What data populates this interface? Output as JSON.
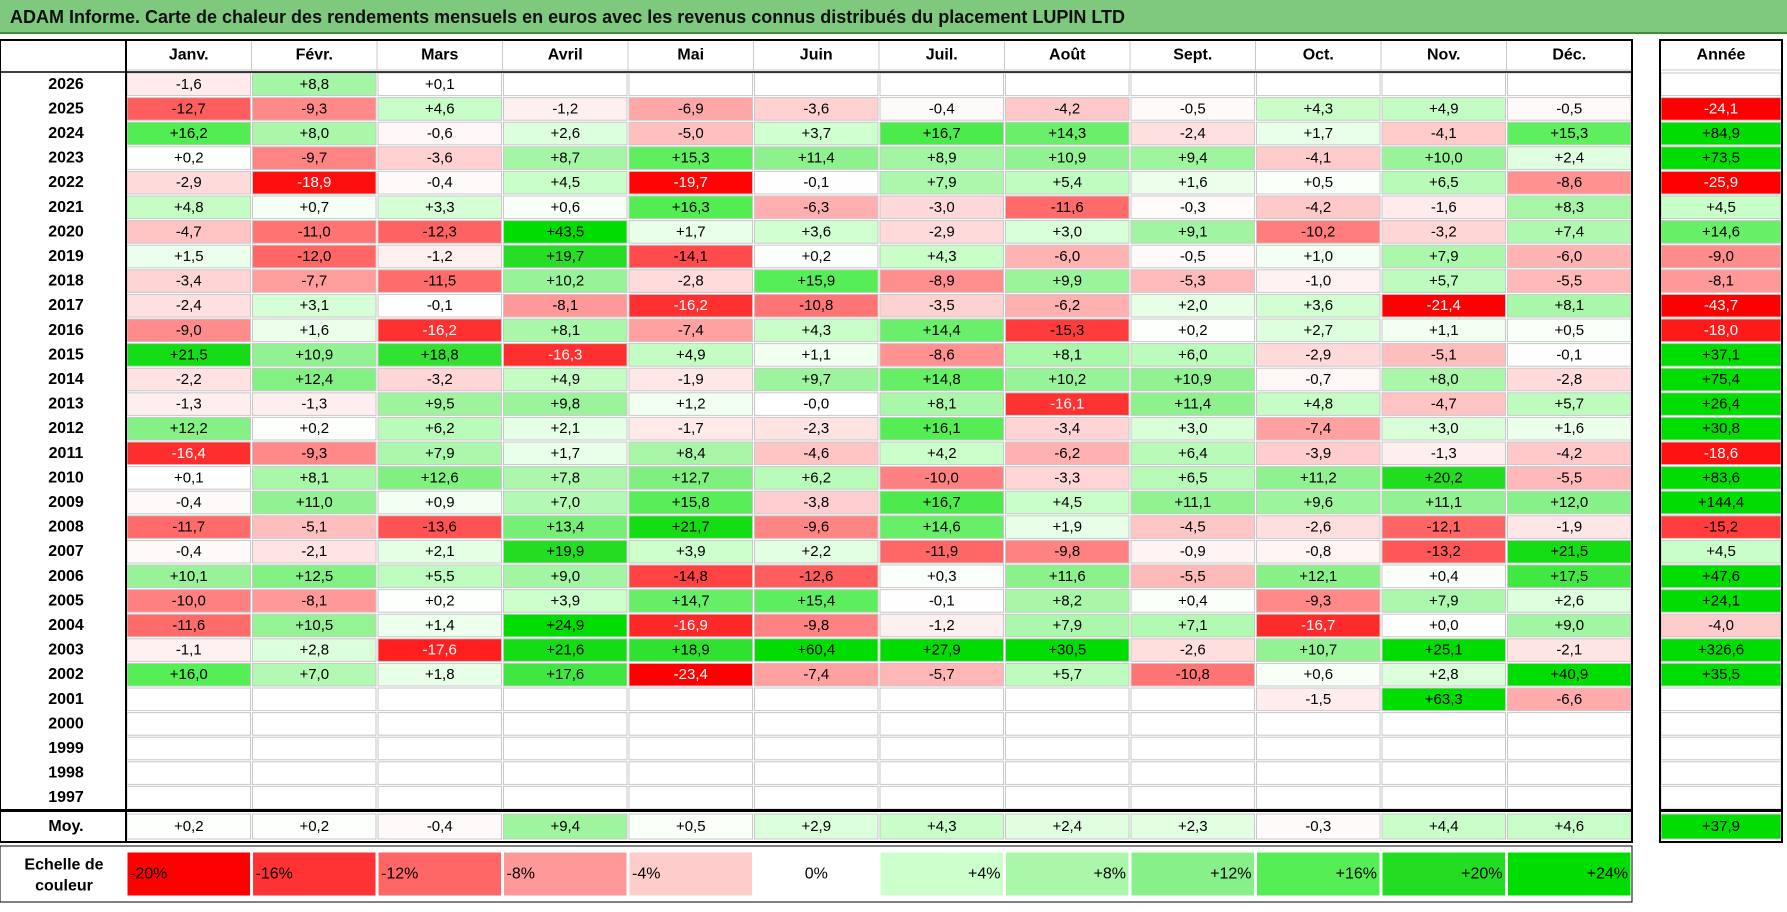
{
  "title": "ADAM Informe. Carte de chaleur des rendements mensuels en euros avec les revenus connus distribués du placement LUPIN LTD",
  "chart_data": {
    "type": "heatmap",
    "title": "ADAM Informe. Carte de chaleur des rendements mensuels en euros avec les revenus connus distribués du placement LUPIN LTD",
    "months": [
      "Janv.",
      "Févr.",
      "Mars",
      "Avril",
      "Mai",
      "Juin",
      "Juil.",
      "Août",
      "Sept.",
      "Oct.",
      "Nov.",
      "Déc."
    ],
    "year_header": "Année",
    "rows": [
      {
        "year": "2026",
        "values": [
          "-1,6",
          "+8,8",
          "+0,1",
          "",
          "",
          "",
          "",
          "",
          "",
          "",
          "",
          ""
        ],
        "annual": ""
      },
      {
        "year": "2025",
        "values": [
          "-12,7",
          "-9,3",
          "+4,6",
          "-1,2",
          "-6,9",
          "-3,6",
          "-0,4",
          "-4,2",
          "-0,5",
          "+4,3",
          "+4,9",
          "-0,5"
        ],
        "annual": "-24,1"
      },
      {
        "year": "2024",
        "values": [
          "+16,2",
          "+8,0",
          "-0,6",
          "+2,6",
          "-5,0",
          "+3,7",
          "+16,7",
          "+14,3",
          "-2,4",
          "+1,7",
          "-4,1",
          "+15,3"
        ],
        "annual": "+84,9"
      },
      {
        "year": "2023",
        "values": [
          "+0,2",
          "-9,7",
          "-3,6",
          "+8,7",
          "+15,3",
          "+11,4",
          "+8,9",
          "+10,9",
          "+9,4",
          "-4,1",
          "+10,0",
          "+2,4"
        ],
        "annual": "+73,5"
      },
      {
        "year": "2022",
        "values": [
          "-2,9",
          "-18,9",
          "-0,4",
          "+4,5",
          "-19,7",
          "-0,1",
          "+7,9",
          "+5,4",
          "+1,6",
          "+0,5",
          "+6,5",
          "-8,6"
        ],
        "annual": "-25,9"
      },
      {
        "year": "2021",
        "values": [
          "+4,8",
          "+0,7",
          "+3,3",
          "+0,6",
          "+16,3",
          "-6,3",
          "-3,0",
          "-11,6",
          "-0,3",
          "-4,2",
          "-1,6",
          "+8,3"
        ],
        "annual": "+4,5"
      },
      {
        "year": "2020",
        "values": [
          "-4,7",
          "-11,0",
          "-12,3",
          "+43,5",
          "+1,7",
          "+3,6",
          "-2,9",
          "+3,0",
          "+9,1",
          "-10,2",
          "-3,2",
          "+7,4"
        ],
        "annual": "+14,6"
      },
      {
        "year": "2019",
        "values": [
          "+1,5",
          "-12,0",
          "-1,2",
          "+19,7",
          "-14,1",
          "+0,2",
          "+4,3",
          "-6,0",
          "-0,5",
          "+1,0",
          "+7,9",
          "-6,0"
        ],
        "annual": "-9,0"
      },
      {
        "year": "2018",
        "values": [
          "-3,4",
          "-7,7",
          "-11,5",
          "+10,2",
          "-2,8",
          "+15,9",
          "-8,9",
          "+9,9",
          "-5,3",
          "-1,0",
          "+5,7",
          "-5,5"
        ],
        "annual": "-8,1"
      },
      {
        "year": "2017",
        "values": [
          "-2,4",
          "+3,1",
          "-0,1",
          "-8,1",
          "-16,2",
          "-10,8",
          "-3,5",
          "-6,2",
          "+2,0",
          "+3,6",
          "-21,4",
          "+8,1"
        ],
        "annual": "-43,7"
      },
      {
        "year": "2016",
        "values": [
          "-9,0",
          "+1,6",
          "-16,2",
          "+8,1",
          "-7,4",
          "+4,3",
          "+14,4",
          "-15,3",
          "+0,2",
          "+2,7",
          "+1,1",
          "+0,5"
        ],
        "annual": "-18,0"
      },
      {
        "year": "2015",
        "values": [
          "+21,5",
          "+10,9",
          "+18,8",
          "-16,3",
          "+4,9",
          "+1,1",
          "-8,6",
          "+8,1",
          "+6,0",
          "-2,9",
          "-5,1",
          "-0,1"
        ],
        "annual": "+37,1"
      },
      {
        "year": "2014",
        "values": [
          "-2,2",
          "+12,4",
          "-3,2",
          "+4,9",
          "-1,9",
          "+9,7",
          "+14,8",
          "+10,2",
          "+10,9",
          "-0,7",
          "+8,0",
          "-2,8"
        ],
        "annual": "+75,4"
      },
      {
        "year": "2013",
        "values": [
          "-1,3",
          "-1,3",
          "+9,5",
          "+9,8",
          "+1,2",
          "-0,0",
          "+8,1",
          "-16,1",
          "+11,4",
          "+4,8",
          "-4,7",
          "+5,7"
        ],
        "annual": "+26,4"
      },
      {
        "year": "2012",
        "values": [
          "+12,2",
          "+0,2",
          "+6,2",
          "+2,1",
          "-1,7",
          "-2,3",
          "+16,1",
          "-3,4",
          "+3,0",
          "-7,4",
          "+3,0",
          "+1,6"
        ],
        "annual": "+30,8"
      },
      {
        "year": "2011",
        "values": [
          "-16,4",
          "-9,3",
          "+7,9",
          "+1,7",
          "+8,4",
          "-4,6",
          "+4,2",
          "-6,2",
          "+6,4",
          "-3,9",
          "-1,3",
          "-4,2"
        ],
        "annual": "-18,6"
      },
      {
        "year": "2010",
        "values": [
          "+0,1",
          "+8,1",
          "+12,6",
          "+7,8",
          "+12,7",
          "+6,2",
          "-10,0",
          "-3,3",
          "+6,5",
          "+11,2",
          "+20,2",
          "-5,5"
        ],
        "annual": "+83,6"
      },
      {
        "year": "2009",
        "values": [
          "-0,4",
          "+11,0",
          "+0,9",
          "+7,0",
          "+15,8",
          "-3,8",
          "+16,7",
          "+4,5",
          "+11,1",
          "+9,6",
          "+11,1",
          "+12,0"
        ],
        "annual": "+144,4"
      },
      {
        "year": "2008",
        "values": [
          "-11,7",
          "-5,1",
          "-13,6",
          "+13,4",
          "+21,7",
          "-9,6",
          "+14,6",
          "+1,9",
          "-4,5",
          "-2,6",
          "-12,1",
          "-1,9"
        ],
        "annual": "-15,2"
      },
      {
        "year": "2007",
        "values": [
          "-0,4",
          "-2,1",
          "+2,1",
          "+19,9",
          "+3,9",
          "+2,2",
          "-11,9",
          "-9,8",
          "-0,9",
          "-0,8",
          "-13,2",
          "+21,5"
        ],
        "annual": "+4,5"
      },
      {
        "year": "2006",
        "values": [
          "+10,1",
          "+12,5",
          "+5,5",
          "+9,0",
          "-14,8",
          "-12,6",
          "+0,3",
          "+11,6",
          "-5,5",
          "+12,1",
          "+0,4",
          "+17,5"
        ],
        "annual": "+47,6"
      },
      {
        "year": "2005",
        "values": [
          "-10,0",
          "-8,1",
          "+0,2",
          "+3,9",
          "+14,7",
          "+15,4",
          "-0,1",
          "+8,2",
          "+0,4",
          "-9,3",
          "+7,9",
          "+2,6"
        ],
        "annual": "+24,1"
      },
      {
        "year": "2004",
        "values": [
          "-11,6",
          "+10,5",
          "+1,4",
          "+24,9",
          "-16,9",
          "-9,8",
          "-1,2",
          "+7,9",
          "+7,1",
          "-16,7",
          "+0,0",
          "+9,0"
        ],
        "annual": "-4,0"
      },
      {
        "year": "2003",
        "values": [
          "-1,1",
          "+2,8",
          "-17,6",
          "+21,6",
          "+18,9",
          "+60,4",
          "+27,9",
          "+30,5",
          "-2,6",
          "+10,7",
          "+25,1",
          "-2,1"
        ],
        "annual": "+326,6"
      },
      {
        "year": "2002",
        "values": [
          "+16,0",
          "+7,0",
          "+1,8",
          "+17,6",
          "-23,4",
          "-7,4",
          "-5,7",
          "+5,7",
          "-10,8",
          "+0,6",
          "+2,8",
          "+40,9"
        ],
        "annual": "+35,5"
      },
      {
        "year": "2001",
        "values": [
          "",
          "",
          "",
          "",
          "",
          "",
          "",
          "",
          "",
          "-1,5",
          "+63,3",
          "-6,6"
        ],
        "annual": ""
      },
      {
        "year": "2000",
        "values": [
          "",
          "",
          "",
          "",
          "",
          "",
          "",
          "",
          "",
          "",
          "",
          ""
        ],
        "annual": ""
      },
      {
        "year": "1999",
        "values": [
          "",
          "",
          "",
          "",
          "",
          "",
          "",
          "",
          "",
          "",
          "",
          ""
        ],
        "annual": ""
      },
      {
        "year": "1998",
        "values": [
          "",
          "",
          "",
          "",
          "",
          "",
          "",
          "",
          "",
          "",
          "",
          ""
        ],
        "annual": ""
      },
      {
        "year": "1997",
        "values": [
          "",
          "",
          "",
          "",
          "",
          "",
          "",
          "",
          "",
          "",
          "",
          ""
        ],
        "annual": ""
      }
    ],
    "average": {
      "label": "Moy.",
      "values": [
        "+0,2",
        "+0,2",
        "-0,4",
        "+9,4",
        "+0,5",
        "+2,9",
        "+4,3",
        "+2,4",
        "+2,3",
        "-0,3",
        "+4,4",
        "+4,6"
      ],
      "annual": "+37,9"
    },
    "scale": {
      "label_line1": "Echelle de",
      "label_line2": "couleur",
      "steps": [
        {
          "label": "-20%",
          "value": -20,
          "color": "#ff0000"
        },
        {
          "label": "-16%",
          "value": -16,
          "color": "#ff3333"
        },
        {
          "label": "-12%",
          "value": -12,
          "color": "#ff6666"
        },
        {
          "label": "-8%",
          "value": -8,
          "color": "#ff9999"
        },
        {
          "label": "-4%",
          "value": -4,
          "color": "#ffcccc"
        },
        {
          "label": "0%",
          "value": 0,
          "color": "#ffffff"
        },
        {
          "label": "+4%",
          "value": 4,
          "color": "#ccffcc"
        },
        {
          "label": "+8%",
          "value": 8,
          "color": "#aaf7aa"
        },
        {
          "label": "+12%",
          "value": 12,
          "color": "#88f088"
        },
        {
          "label": "+16%",
          "value": 16,
          "color": "#55ee55"
        },
        {
          "label": "+20%",
          "value": 20,
          "color": "#22dd22"
        },
        {
          "label": "+24%",
          "value": 24,
          "color": "#00dd00"
        }
      ]
    }
  }
}
